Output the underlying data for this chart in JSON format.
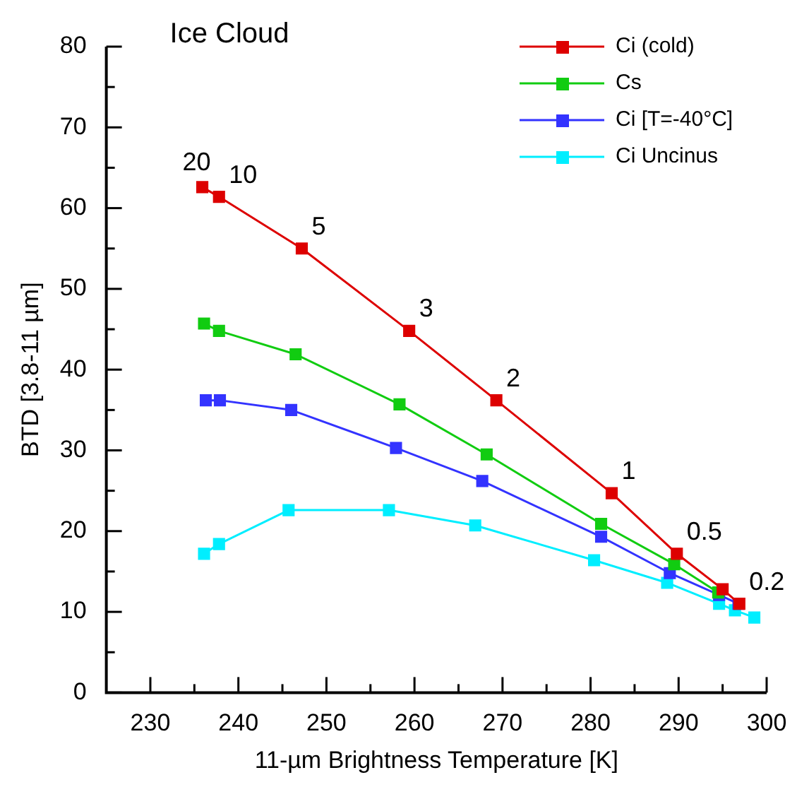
{
  "chart_data": {
    "type": "line",
    "title": "Ice Cloud",
    "xlabel": "11-µm Brightness Temperature [K]",
    "ylabel": "BTD [3.8-11 µm]",
    "xlim": [
      225,
      300
    ],
    "xticks": [
      230,
      {
        "value": 235,
        "label": null
      },
      240,
      {
        "value": 245,
        "label": null
      },
      250,
      {
        "value": 255,
        "label": null
      },
      260,
      {
        "value": 265,
        "label": null
      },
      270,
      {
        "value": 275,
        "label": null
      },
      280,
      {
        "value": 285,
        "label": null
      },
      290,
      {
        "value": 295,
        "label": null
      },
      300
    ],
    "ylim": [
      0,
      80
    ],
    "yticks": [
      0,
      {
        "value": 5,
        "label": null
      },
      10,
      {
        "value": 15,
        "label": null
      },
      20,
      {
        "value": 25,
        "label": null
      },
      30,
      {
        "value": 35,
        "label": null
      },
      40,
      {
        "value": 45,
        "label": null
      },
      50,
      {
        "value": 55,
        "label": null
      },
      60,
      {
        "value": 65,
        "label": null
      },
      70,
      {
        "value": 75,
        "label": null
      },
      80
    ],
    "grid": false,
    "legend": "top right",
    "marker": "square",
    "line_style": "solid",
    "series": [
      {
        "name": "Ci (cold)",
        "color": "#dd0000",
        "x": [
          235.9,
          237.8,
          247.2,
          259.4,
          269.3,
          282.4,
          289.8,
          295.0,
          296.9
        ],
        "values": [
          62.6,
          61.4,
          55.0,
          44.8,
          36.2,
          24.7,
          17.2,
          12.8,
          11.0
        ]
      },
      {
        "name": "Cs",
        "color": "#11cc11",
        "x": [
          236.1,
          237.8,
          246.5,
          258.3,
          268.2,
          281.2,
          289.5,
          294.5
        ],
        "values": [
          45.7,
          44.8,
          41.9,
          35.7,
          29.5,
          20.9,
          15.9,
          12.4
        ]
      },
      {
        "name": "Ci [T=-40°C]",
        "color": "#3333ff",
        "x": [
          236.3,
          237.9,
          246.0,
          257.9,
          267.7,
          281.2,
          289.0,
          294.6,
          296.8
        ],
        "values": [
          36.2,
          36.2,
          35.0,
          30.3,
          26.2,
          19.3,
          14.8,
          12.1,
          11.0
        ]
      },
      {
        "name": "Ci Uncinus",
        "color": "#00eeff",
        "x": [
          236.1,
          237.8,
          245.7,
          257.1,
          266.9,
          280.4,
          288.7,
          294.6,
          296.4,
          298.6
        ],
        "values": [
          17.2,
          18.4,
          22.6,
          22.6,
          20.7,
          16.4,
          13.6,
          11.0,
          10.2,
          9.3
        ]
      }
    ],
    "annotations": [
      {
        "text": "20",
        "x": 235.9,
        "y": 62.6
      },
      {
        "text": "10",
        "x": 237.8,
        "y": 61.4
      },
      {
        "text": "5",
        "x": 247.2,
        "y": 55.0
      },
      {
        "text": "3",
        "x": 259.4,
        "y": 44.8
      },
      {
        "text": "2",
        "x": 269.3,
        "y": 36.2
      },
      {
        "text": "1",
        "x": 282.4,
        "y": 24.7
      },
      {
        "text": "0.5",
        "x": 289.8,
        "y": 17.2
      },
      {
        "text": "0.2",
        "x": 296.9,
        "y": 11.0
      }
    ]
  }
}
